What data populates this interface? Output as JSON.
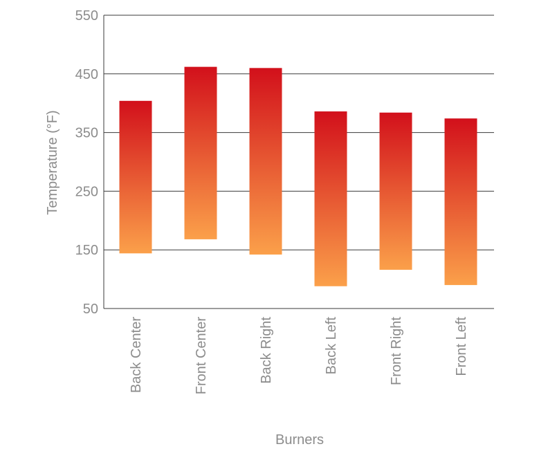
{
  "chart_data": {
    "type": "bar",
    "subtype": "floating-range",
    "title": "",
    "xlabel": "Burners",
    "ylabel": "Temperature (°F)",
    "ylim": [
      50,
      550
    ],
    "yticks": [
      "550",
      "450",
      "350",
      "250",
      "150",
      "50"
    ],
    "ytick_values": [
      550,
      450,
      350,
      250,
      150,
      50
    ],
    "grid": true,
    "legend": "none",
    "categories": [
      "Back Center",
      "Front Center",
      "Back Right",
      "Back Left",
      "Front Right",
      "Front Left"
    ],
    "series": [
      {
        "low": [
          144,
          168,
          142,
          88,
          116,
          90
        ],
        "high": [
          404,
          462,
          460,
          386,
          384,
          374
        ]
      }
    ],
    "colors": {
      "bar_top": "#d2101b",
      "bar_bottom": "#fba04a",
      "grid": "#3a3a3a",
      "text": "#8c8c8c"
    }
  }
}
